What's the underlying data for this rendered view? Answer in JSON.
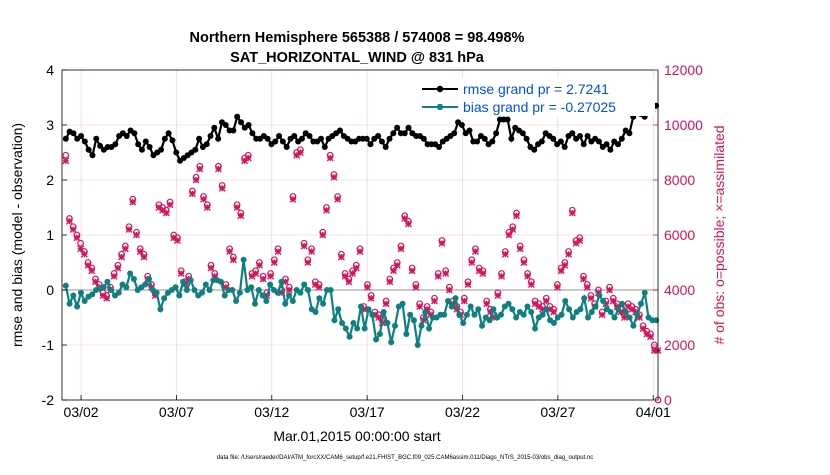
{
  "chart_data": {
    "type": "line",
    "title": "Northern Hemisphere 565388 / 574008 = 98.498%",
    "subtitle": "SAT_HORIZONTAL_WIND @ 831 hPa",
    "xlabel": "Mar.01,2015 00:00:00 start",
    "ylabel_left": "rmse and bias (model - observation)",
    "ylabel_right": "# of obs: o=possible; ×=assimilated",
    "footnote": "data file: /Users/raeder/DAI/ATM_forcXX/CAM6_setup/f.e21.FHIST_BGC.f09_025.CAM6assim.011/Diags_NTrS_2015-03/obs_diag_output.nc",
    "x_ticks": [
      "03/02",
      "03/07",
      "03/12",
      "03/17",
      "03/22",
      "03/27",
      "04/01"
    ],
    "x_tick_days": [
      1,
      6,
      11,
      16,
      21,
      26,
      31
    ],
    "x_range_days": [
      0,
      31.25
    ],
    "ylim_left": [
      -2,
      4
    ],
    "yticks_left": [
      "-2",
      "-1",
      "0",
      "1",
      "2",
      "3",
      "4"
    ],
    "ylim_right": [
      0,
      12000
    ],
    "yticks_right": [
      "0",
      "2000",
      "4000",
      "6000",
      "8000",
      "10000",
      "12000"
    ],
    "colors": {
      "rmse": "#000000",
      "bias": "#0e8080",
      "obs": "#d4145a",
      "legend_text": "#0050e0",
      "zero_line": "#b8b8b8",
      "grid": "#f0c8d8"
    },
    "series": [
      {
        "name": "rmse grand pr = 2.7241",
        "axis": "left",
        "values": [
          2.75,
          2.88,
          2.85,
          2.75,
          2.8,
          2.7,
          2.55,
          2.45,
          2.75,
          2.62,
          2.55,
          2.6,
          2.6,
          2.65,
          2.8,
          2.85,
          2.8,
          2.9,
          2.85,
          2.65,
          2.55,
          2.7,
          2.6,
          2.45,
          2.5,
          2.55,
          2.75,
          2.85,
          2.72,
          2.5,
          2.35,
          2.4,
          2.45,
          2.5,
          2.55,
          2.75,
          2.6,
          2.65,
          2.8,
          2.95,
          2.75,
          3.05,
          3.0,
          2.9,
          2.9,
          3.15,
          3.05,
          2.95,
          3.0,
          2.85,
          2.75,
          2.75,
          2.8,
          2.75,
          2.65,
          2.7,
          2.8,
          2.7,
          2.6,
          2.75,
          2.8,
          2.7,
          2.75,
          2.85,
          2.8,
          2.7,
          2.7,
          2.75,
          2.6,
          2.75,
          2.8,
          2.85,
          2.9,
          2.8,
          2.75,
          2.7,
          2.7,
          2.75,
          2.75,
          2.75,
          2.65,
          2.75,
          2.8,
          2.7,
          2.6,
          2.75,
          2.85,
          2.95,
          2.85,
          2.85,
          2.95,
          2.85,
          2.8,
          2.8,
          2.75,
          2.65,
          2.65,
          2.65,
          2.6,
          2.7,
          2.75,
          2.8,
          2.85,
          3.05,
          3.0,
          2.85,
          2.9,
          2.7,
          2.7,
          2.8,
          2.75,
          2.65,
          2.7,
          2.85,
          3.1,
          3.1,
          3.1,
          2.75,
          2.95,
          2.9,
          2.85,
          2.75,
          2.6,
          2.55,
          2.65,
          2.7,
          2.85,
          2.8,
          2.75,
          2.65,
          2.7,
          2.6,
          2.8,
          2.85,
          2.75,
          2.8,
          2.65,
          2.8,
          2.7,
          2.75,
          2.7,
          2.6,
          2.65,
          2.55,
          2.7,
          2.65,
          2.75,
          2.9,
          2.85,
          3.15,
          3.3,
          3.2,
          3.15,
          3.3,
          3.25,
          3.35
        ]
      },
      {
        "name": "bias grand pr = -0.27025",
        "axis": "left",
        "values": [
          0.08,
          -0.25,
          -0.1,
          -0.3,
          -0.05,
          -0.2,
          -0.12,
          -0.08,
          0.0,
          0.02,
          0.05,
          0.15,
          0.0,
          -0.1,
          -0.05,
          0.1,
          0.05,
          0.3,
          0.2,
          0.0,
          0.05,
          0.1,
          0.2,
          0.0,
          -0.05,
          -0.35,
          -0.15,
          -0.05,
          0.0,
          0.05,
          -0.1,
          0.15,
          0.0,
          0.18,
          0.0,
          -0.1,
          -0.05,
          0.1,
          0.0,
          0.18,
          0.18,
          0.15,
          -0.1,
          0.0,
          0.0,
          -0.2,
          -0.05,
          0.55,
          0.0,
          0.05,
          -0.25,
          0.0,
          -0.1,
          -0.2,
          0.1,
          0.0,
          -0.05,
          0.15,
          -0.25,
          -0.1,
          -0.2,
          0.0,
          -0.05,
          0.1,
          0.0,
          -0.35,
          -0.4,
          -0.15,
          -0.25,
          0.0,
          0.0,
          -0.55,
          -0.35,
          -0.6,
          -0.7,
          -0.85,
          -0.6,
          -0.7,
          -0.3,
          -0.7,
          -0.35,
          -0.45,
          -0.9,
          -0.8,
          -0.4,
          -0.6,
          -0.95,
          -0.65,
          -0.3,
          -0.25,
          -0.8,
          -0.45,
          -0.55,
          -1.0,
          -0.65,
          -0.4,
          -0.7,
          -0.5,
          -0.5,
          -0.45,
          -0.45,
          -0.2,
          -0.3,
          -0.15,
          -0.45,
          -0.6,
          -0.45,
          -0.3,
          -0.45,
          -0.35,
          -0.65,
          -0.5,
          -0.55,
          -0.35,
          -0.5,
          -0.45,
          -0.3,
          -0.25,
          -0.35,
          -0.5,
          -0.4,
          -0.45,
          -0.3,
          -0.4,
          -0.7,
          -0.5,
          -0.45,
          -0.35,
          -0.55,
          -0.6,
          -0.5,
          -0.45,
          -0.2,
          -0.35,
          -0.5,
          -0.4,
          -0.35,
          -0.15,
          -0.5,
          -0.4,
          -0.3,
          -0.1,
          -0.2,
          -0.35,
          -0.4,
          -0.5,
          -0.35,
          -0.25,
          -0.4,
          -0.5,
          -0.65,
          -0.45,
          -0.25,
          -0.05,
          -0.5,
          -0.55,
          -0.55
        ]
      },
      {
        "name": "possible",
        "axis": "right",
        "marker": "o",
        "values": [
          8900,
          6600,
          6300,
          6000,
          5700,
          5400,
          5000,
          4800,
          4400,
          4200,
          3900,
          3800,
          4100,
          4600,
          4900,
          5300,
          5600,
          6300,
          7300,
          6100,
          5500,
          5300,
          4500,
          4200,
          3900,
          7100,
          7000,
          6900,
          7200,
          6000,
          5900,
          4700,
          4300,
          4500,
          7600,
          8100,
          8500,
          7400,
          7100,
          4900,
          4600,
          8500,
          7800,
          4200,
          5500,
          5200,
          7100,
          6800,
          8800,
          8900,
          4600,
          4700,
          5000,
          4500,
          3900,
          4600,
          5100,
          5500,
          4000,
          4400,
          4100,
          7400,
          9000,
          9100,
          5700,
          5100,
          5500,
          4300,
          4200,
          6100,
          7000,
          8900,
          8200,
          7400,
          5300,
          4600,
          4400,
          4700,
          4900,
          5500,
          3400,
          4200,
          3800,
          3200,
          3100,
          2900,
          3600,
          4400,
          4800,
          5000,
          5600,
          6700,
          6500,
          4800,
          4200,
          3500,
          3000,
          3400,
          3200,
          3700,
          4600,
          5800,
          4700,
          4100,
          3600,
          3400,
          3200,
          3700,
          4300,
          5100,
          5500,
          4800,
          4700,
          3600,
          3300,
          3100,
          3900,
          4600,
          5400,
          6100,
          6300,
          6800,
          5600,
          5100,
          4600,
          4300,
          3600,
          3500,
          3400,
          3700,
          3400,
          3300,
          4200,
          4800,
          5000,
          5400,
          6900,
          5800,
          5900,
          4500,
          4200,
          3800,
          3500,
          4000,
          3200,
          3600,
          4100,
          3700,
          3500,
          3300,
          3100,
          3500,
          3400,
          3300,
          3100,
          2700,
          2500,
          2400,
          2000,
          0
        ]
      },
      {
        "name": "assimilated",
        "axis": "right",
        "marker": "x",
        "values": [
          8700,
          6500,
          6200,
          5900,
          5500,
          5300,
          4900,
          4700,
          4300,
          4100,
          3800,
          3700,
          4000,
          4500,
          4800,
          5200,
          5500,
          6200,
          7200,
          6000,
          5400,
          5200,
          4400,
          4100,
          3800,
          7000,
          6900,
          6800,
          7100,
          5900,
          5800,
          4600,
          4200,
          4400,
          7500,
          8000,
          8400,
          7300,
          7000,
          4800,
          4500,
          8400,
          7700,
          4100,
          5400,
          5100,
          7000,
          6700,
          8700,
          8800,
          4500,
          4600,
          4900,
          4400,
          3800,
          4500,
          5000,
          5400,
          3900,
          4300,
          4000,
          7300,
          8900,
          9000,
          5600,
          5000,
          5400,
          4200,
          4100,
          6000,
          6900,
          8800,
          8100,
          7300,
          5200,
          4500,
          4300,
          4600,
          4800,
          5400,
          3300,
          4100,
          3700,
          3100,
          3000,
          2800,
          3500,
          4300,
          4700,
          4900,
          5500,
          6600,
          6400,
          4700,
          4100,
          3400,
          2900,
          3300,
          3100,
          3600,
          4500,
          5700,
          4600,
          4000,
          3500,
          3300,
          3100,
          3600,
          4200,
          5000,
          5400,
          4700,
          4600,
          3500,
          3200,
          3000,
          3800,
          4500,
          5300,
          6000,
          6200,
          6700,
          5500,
          5000,
          4500,
          4200,
          3500,
          3400,
          3300,
          3600,
          3300,
          3200,
          4100,
          4700,
          4900,
          5300,
          6800,
          5700,
          5800,
          4400,
          4100,
          3700,
          3400,
          3900,
          3100,
          3500,
          4000,
          3600,
          3400,
          3200,
          3000,
          3400,
          3300,
          3200,
          3000,
          2600,
          2400,
          2300,
          1800,
          1800
        ]
      }
    ]
  }
}
